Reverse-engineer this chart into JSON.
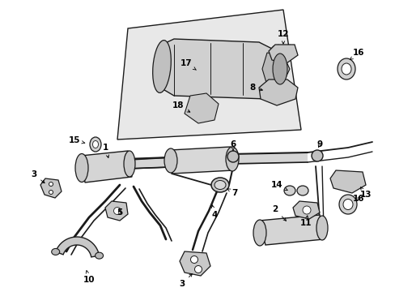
{
  "bg_color": "#ffffff",
  "line_color": "#1a1a1a",
  "fig_width": 4.89,
  "fig_height": 3.6,
  "dpi": 100,
  "label_fontsize": 7.5,
  "lw_pipe": 1.4,
  "lw_body": 0.9,
  "fc_body": "#d8d8d8",
  "fc_light": "#ebebeb",
  "fc_shaded": "#c0c0c0"
}
